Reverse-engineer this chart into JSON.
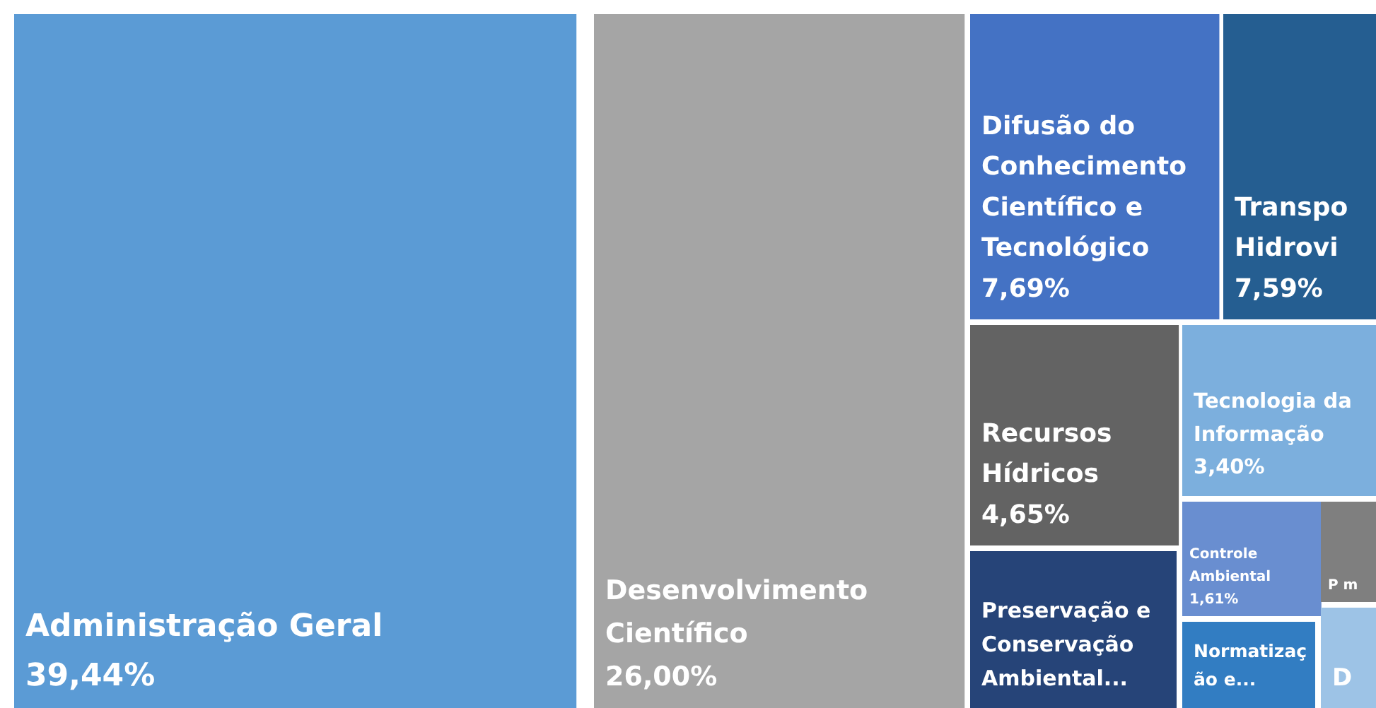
{
  "chart_data": {
    "type": "other",
    "categories": [
      "Administração Geral",
      "Desenvolvimento Científico",
      "Difusão do Conhecimento Científico e Tecnológico",
      "Transpo Hidrovi",
      "Recursos Hídricos",
      "Tecnologia da Informação",
      "Preservação e Conservação Ambiental...",
      "Controle Ambiental",
      "P m",
      "Normatização e...",
      "D"
    ],
    "values": [
      39.44,
      26.0,
      7.69,
      7.59,
      4.65,
      3.4,
      null,
      1.61,
      null,
      null,
      null
    ],
    "value_labels": [
      "39,44%",
      "26,00%",
      "7,69%",
      "7,59%",
      "4,65%",
      "3,40%",
      null,
      "1,61%",
      null,
      null,
      null
    ],
    "colors": [
      "#5b9bd5",
      "#a5a5a5",
      "#4472c4",
      "#255e91",
      "#636363",
      "#7cafdd",
      "#264478",
      "#698ed0",
      "#7f7f7f",
      "#327dc2",
      "#9dc3e6"
    ]
  }
}
